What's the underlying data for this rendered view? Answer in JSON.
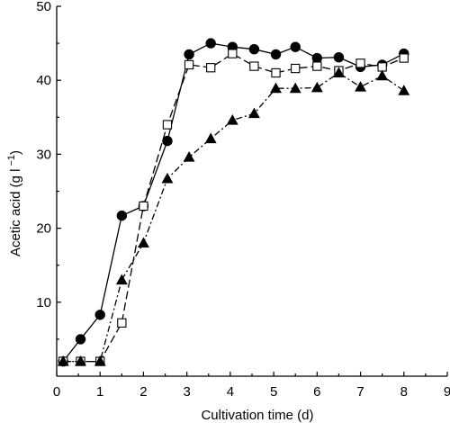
{
  "chart_data": {
    "type": "line",
    "title": "",
    "xlabel": "Cultivation time (d)",
    "ylabel": "Acetic acid (g l",
    "ylabel_superscript": "−1",
    "ylabel_suffix": ")",
    "xlim": [
      0,
      9
    ],
    "ylim": [
      0,
      50
    ],
    "xticks": [
      0,
      1,
      2,
      3,
      4,
      5,
      6,
      7,
      8,
      9
    ],
    "yticks": [
      10,
      20,
      30,
      40,
      50
    ],
    "grid": false,
    "legend": "none",
    "series": [
      {
        "marker": "filled-circle",
        "line": "solid",
        "points": [
          [
            0.15,
            2
          ],
          [
            0.55,
            5
          ],
          [
            1.0,
            8.3
          ],
          [
            1.5,
            21.7
          ],
          [
            2.0,
            23
          ],
          [
            2.55,
            31.8
          ],
          [
            3.05,
            43.5
          ],
          [
            3.55,
            45
          ],
          [
            4.05,
            44.5
          ],
          [
            4.55,
            44.2
          ],
          [
            5.05,
            43.5
          ],
          [
            5.5,
            44.5
          ],
          [
            6.0,
            43
          ],
          [
            6.5,
            43.1
          ],
          [
            7.0,
            41.8
          ],
          [
            7.5,
            42.1
          ],
          [
            8.0,
            43.6
          ]
        ]
      },
      {
        "marker": "open-square",
        "line": "long-dash",
        "points": [
          [
            0.15,
            2
          ],
          [
            0.55,
            2
          ],
          [
            1.0,
            2
          ],
          [
            1.5,
            7.2
          ],
          [
            2.0,
            23
          ],
          [
            2.55,
            34
          ],
          [
            3.05,
            42.1
          ],
          [
            3.55,
            41.7
          ],
          [
            4.05,
            43.6
          ],
          [
            4.55,
            41.9
          ],
          [
            5.05,
            41
          ],
          [
            5.5,
            41.6
          ],
          [
            6.0,
            41.9
          ],
          [
            6.5,
            41.3
          ],
          [
            7.0,
            42.3
          ],
          [
            7.5,
            41.8
          ],
          [
            8.0,
            43
          ]
        ]
      },
      {
        "marker": "filled-triangle",
        "line": "dash-dot",
        "points": [
          [
            0.15,
            2
          ],
          [
            0.55,
            2
          ],
          [
            1.0,
            2
          ],
          [
            1.5,
            13
          ],
          [
            2.0,
            18
          ],
          [
            2.55,
            26.7
          ],
          [
            3.05,
            29.6
          ],
          [
            3.55,
            32.1
          ],
          [
            4.05,
            34.6
          ],
          [
            4.55,
            35.5
          ],
          [
            5.05,
            38.9
          ],
          [
            5.5,
            38.9
          ],
          [
            6.0,
            39
          ],
          [
            6.5,
            41
          ],
          [
            7.0,
            39.1
          ],
          [
            7.5,
            40.6
          ],
          [
            8.0,
            38.6
          ]
        ]
      }
    ]
  }
}
